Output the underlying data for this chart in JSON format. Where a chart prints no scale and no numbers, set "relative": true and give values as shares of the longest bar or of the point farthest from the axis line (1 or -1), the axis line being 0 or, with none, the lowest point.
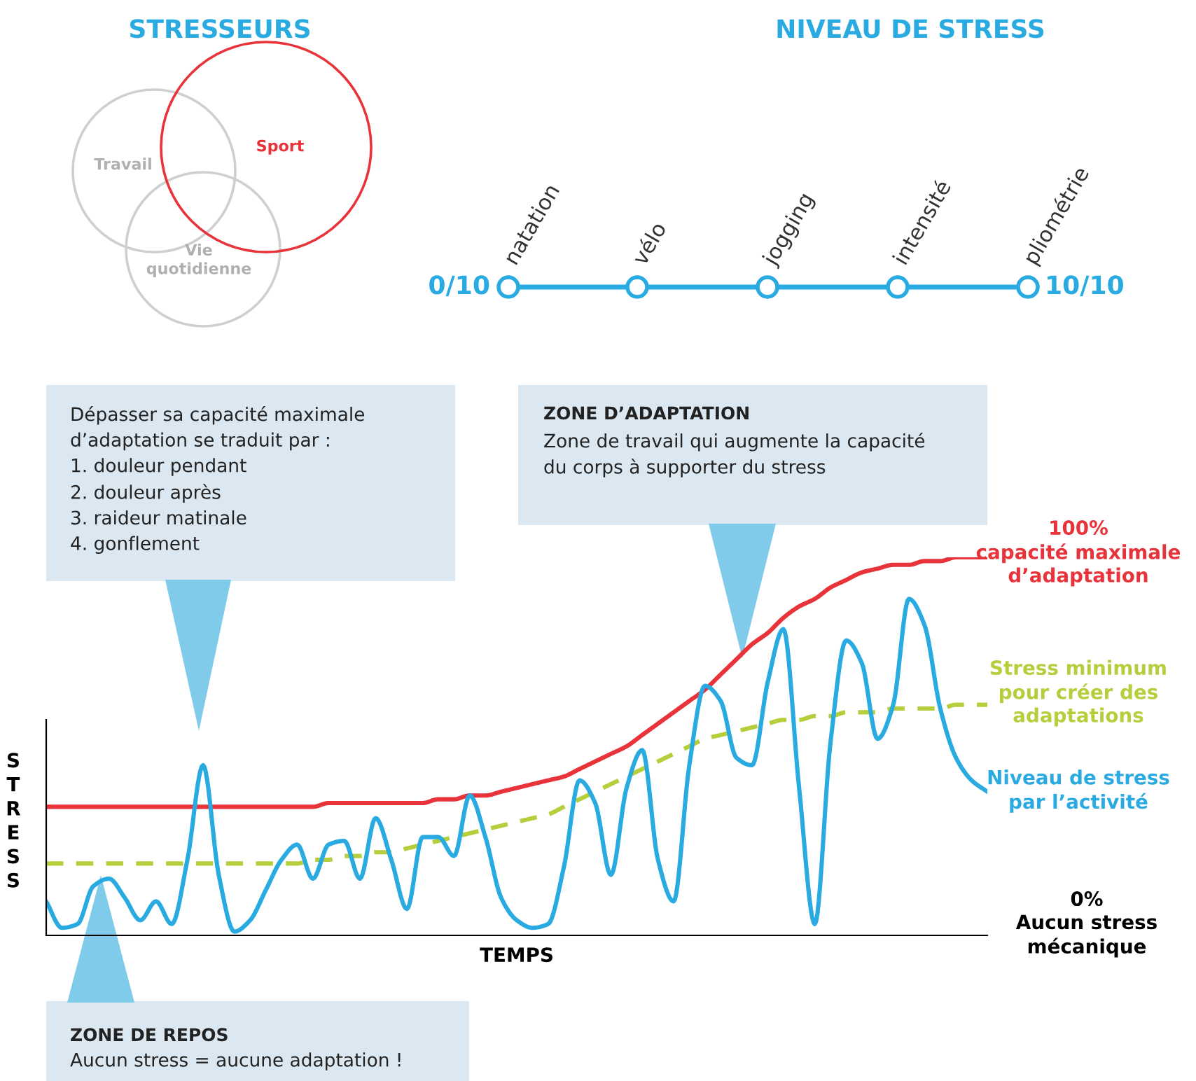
{
  "chart_data": {
    "type": "line",
    "relative": true,
    "xlabel": "TEMPS",
    "ylabel": "STRESS",
    "categories": [
      null,
      null,
      null,
      null,
      null,
      null,
      null,
      null,
      null,
      null,
      null,
      null,
      null,
      null,
      null,
      null,
      null,
      null,
      null,
      null,
      null,
      null,
      null,
      null,
      null,
      null,
      null,
      null,
      null,
      null,
      null,
      null,
      null,
      null,
      null,
      null,
      null,
      null,
      null,
      null,
      null,
      null,
      null,
      null,
      null,
      null,
      null,
      null,
      null,
      null,
      null,
      null,
      null,
      null,
      null,
      null,
      null,
      null,
      null,
      null,
      null
    ],
    "series": [
      {
        "name": "100%\ncapacité maximale\nd’adaptation",
        "color": "#e8333a",
        "values": [
          0.34,
          0.34,
          0.34,
          0.34,
          0.34,
          0.34,
          0.34,
          0.34,
          0.34,
          0.34,
          0.34,
          0.34,
          0.34,
          0.34,
          0.34,
          0.34,
          0.34,
          0.34,
          0.35,
          0.35,
          0.35,
          0.35,
          0.35,
          0.35,
          0.35,
          0.36,
          0.36,
          0.37,
          0.37,
          0.38,
          0.39,
          0.4,
          0.41,
          0.42,
          0.44,
          0.46,
          0.48,
          0.5,
          0.53,
          0.56,
          0.59,
          0.62,
          0.65,
          0.69,
          0.73,
          0.77,
          0.8,
          0.84,
          0.87,
          0.89,
          0.92,
          0.94,
          0.96,
          0.97,
          0.98,
          0.98,
          0.99,
          0.99,
          1,
          1,
          1
        ]
      },
      {
        "name": "Stress minimum\npour créer des\nadaptations",
        "color": "#b5cf3c",
        "line_style": "dashed",
        "values": [
          0.19,
          0.19,
          0.19,
          0.19,
          0.19,
          0.19,
          0.19,
          0.19,
          0.19,
          0.19,
          0.19,
          0.19,
          0.19,
          0.19,
          0.19,
          0.19,
          0.19,
          0.2,
          0.2,
          0.21,
          0.21,
          0.22,
          0.22,
          0.23,
          0.24,
          0.25,
          0.26,
          0.27,
          0.28,
          0.29,
          0.3,
          0.31,
          0.32,
          0.34,
          0.36,
          0.38,
          0.4,
          0.42,
          0.44,
          0.46,
          0.48,
          0.5,
          0.52,
          0.53,
          0.54,
          0.55,
          0.56,
          0.57,
          0.57,
          0.58,
          0.58,
          0.59,
          0.59,
          0.59,
          0.6,
          0.6,
          0.6,
          0.6,
          0.61,
          0.61,
          0.61
        ]
      },
      {
        "name": "Niveau de stress\npar l’activité",
        "color": "#29abe2",
        "values": [
          0.09,
          0.02,
          0.03,
          0.13,
          0.15,
          0.1,
          0.04,
          0.09,
          0.03,
          0.2,
          0.45,
          0.16,
          0.01,
          0.04,
          0.12,
          0.2,
          0.24,
          0.15,
          0.24,
          0.25,
          0.15,
          0.31,
          0.2,
          0.07,
          0.26,
          0.26,
          0.21,
          0.37,
          0.26,
          0.1,
          0.04,
          0.02,
          0.03,
          0.18,
          0.41,
          0.35,
          0.16,
          0.39,
          0.49,
          0.2,
          0.09,
          0.45,
          0.66,
          0.62,
          0.47,
          0.45,
          0.67,
          0.81,
          0.39,
          0.03,
          0.51,
          0.78,
          0.72,
          0.52,
          0.61,
          0.89,
          0.82,
          0.6,
          0.47,
          0.41,
          0.38
        ]
      }
    ],
    "annotations": [
      "STRESSEURS",
      "NIVEAU DE STRESS",
      "Travail",
      "Sport",
      "Vie\nquotidienne",
      "0/10",
      "natation",
      "vélo",
      "jogging",
      "intensité",
      "pliométrie",
      "10/10",
      "Dépasser sa capacité maximale\nd’adaptation se traduit par :\n1. douleur pendant\n2. douleur après\n3. raideur matinale\n4. gonflement",
      "ZONE D’ADAPTATION",
      "Zone de travail qui augmente la capacité\ndu corps à supporter du stress",
      "ZONE DE REPOS",
      "Aucun stress = aucune adaptation !",
      "0%\nAucun stress\nmécanique"
    ]
  }
}
